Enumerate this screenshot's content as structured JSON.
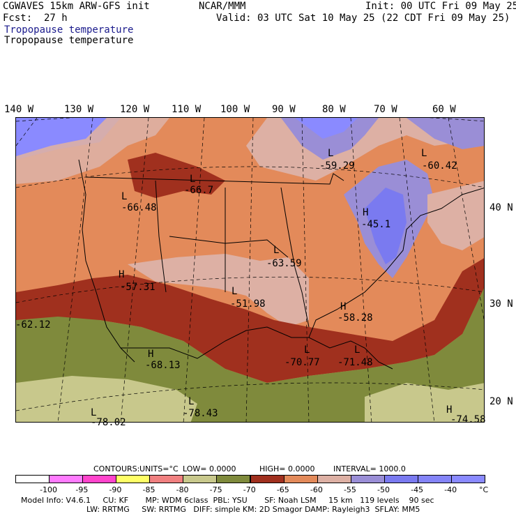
{
  "header": {
    "model": "CGWAVES 15km ARW-GFS init",
    "org": "NCAR/MMM",
    "init": "Init: 00 UTC Fri 09 May 25",
    "fcst_label": "Fcst:",
    "fcst_value": "27 h",
    "valid": "Valid: 03 UTC Sat 10 May 25 (22 CDT Fri 09 May 25)",
    "field_title_1": "Tropopause temperature",
    "field_title_2": "Tropopause temperature"
  },
  "axes": {
    "lon_labels": [
      "140 W",
      "130 W",
      "120 W",
      "110 W",
      "100 W",
      "90 W",
      "80 W",
      "70 W",
      "60 W"
    ],
    "lat_labels": [
      "40 N",
      "30 N",
      "20 N"
    ]
  },
  "markers": [
    {
      "letter": "L",
      "value": "-59.29"
    },
    {
      "letter": "L",
      "value": "-60.42"
    },
    {
      "letter": "L",
      "value": "-66.7"
    },
    {
      "letter": "L",
      "value": "-66.48"
    },
    {
      "letter": "H",
      "value": "-45.1"
    },
    {
      "letter": "L",
      "value": "-63.59"
    },
    {
      "letter": "H",
      "value": "-57.31"
    },
    {
      "letter": "L",
      "value": "-51.98"
    },
    {
      "letter": "H",
      "value": "-58.28"
    },
    {
      "letter": "",
      "value": "-62.12"
    },
    {
      "letter": "H",
      "value": "-68.13"
    },
    {
      "letter": "L",
      "value": "-70.77"
    },
    {
      "letter": "L",
      "value": "-71.48"
    },
    {
      "letter": "L",
      "value": "-78.43"
    },
    {
      "letter": "L",
      "value": "-78.02"
    },
    {
      "letter": "H",
      "value": "-74.58"
    }
  ],
  "contours": {
    "label": "CONTOURS:",
    "units": "UNITS=°C",
    "low": "LOW= 0.0000",
    "high": "HIGH= 0.0000",
    "interval": "INTERVAL= 1000.0"
  },
  "colorbar": {
    "labels": [
      "-100",
      "-95",
      "-90",
      "-85",
      "-80",
      "-75",
      "-70",
      "-65",
      "-60",
      "-55",
      "-50",
      "-45",
      "-40"
    ],
    "unit": "°C",
    "colors": [
      "#ffffff",
      "#ff7bff",
      "#ff44cc",
      "#ffff66",
      "#f08080",
      "#c8c88c",
      "#7f8a3c",
      "#a0301e",
      "#e38a5a",
      "#ddb0a4",
      "#9a8ed6",
      "#7a7af0",
      "#8484f8",
      "#8a8aff"
    ]
  },
  "footer": {
    "line1": "Model Info: V4.6.1     CU: KF       MP: WDM 6class  PBL: YSU       SF: Noah LSM     15 km   119 levels    90 sec",
    "line2": "LW: RRTMG     SW: RRTMG   DIFF: simple KM: 2D Smagor DAMP: Rayleigh3  SFLAY: MM5"
  }
}
